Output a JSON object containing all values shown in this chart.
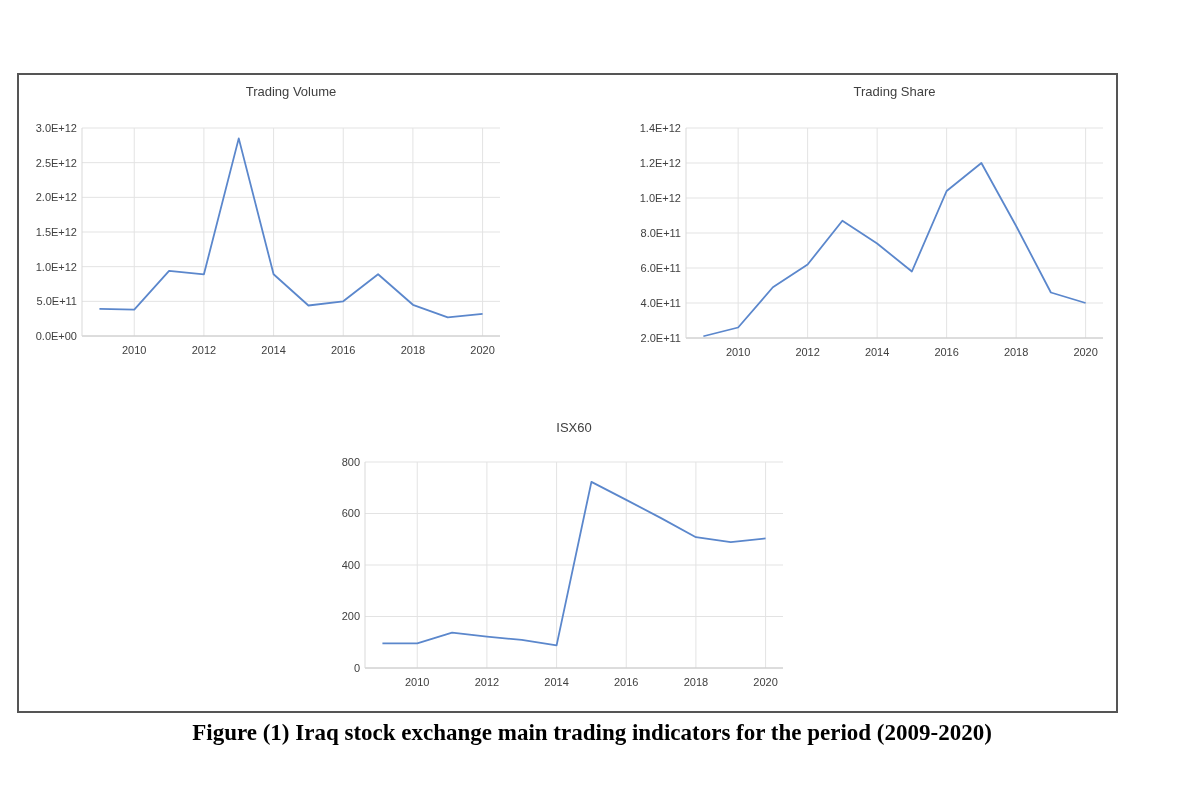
{
  "chart_data": [
    {
      "type": "line",
      "title": "Trading Volume",
      "x": [
        2009,
        2010,
        2011,
        2012,
        2013,
        2014,
        2015,
        2016,
        2017,
        2018,
        2019,
        2020
      ],
      "series": [
        {
          "color": "#5b87cc",
          "values": [
            390000000000.0,
            380000000000.0,
            940000000000.0,
            890000000000.0,
            2850000000000.0,
            890000000000.0,
            440000000000.0,
            500000000000.0,
            890000000000.0,
            450000000000.0,
            270000000000.0,
            320000000000.0
          ]
        }
      ],
      "xlim": [
        2008.5,
        2020.5
      ],
      "xticks": [
        2010,
        2012,
        2014,
        2016,
        2018,
        2020
      ],
      "ylim": [
        0,
        3000000000000.0
      ],
      "yticks": [
        {
          "value": 0,
          "label": "0.0E+00"
        },
        {
          "value": 500000000000.0,
          "label": "5.0E+11"
        },
        {
          "value": 1000000000000.0,
          "label": "1.0E+12"
        },
        {
          "value": 1500000000000.0,
          "label": "1.5E+12"
        },
        {
          "value": 2000000000000.0,
          "label": "2.0E+12"
        },
        {
          "value": 2500000000000.0,
          "label": "2.5E+12"
        },
        {
          "value": 3000000000000.0,
          "label": "3.0E+12"
        }
      ],
      "grid": true
    },
    {
      "type": "line",
      "title": "Trading Share",
      "x": [
        2009,
        2010,
        2011,
        2012,
        2013,
        2014,
        2015,
        2016,
        2017,
        2018,
        2019,
        2020
      ],
      "series": [
        {
          "color": "#5b87cc",
          "values": [
            210000000000.0,
            260000000000.0,
            490000000000.0,
            620000000000.0,
            870000000000.0,
            740000000000.0,
            580000000000.0,
            1040000000000.0,
            1200000000000.0,
            840000000000.0,
            460000000000.0,
            400000000000.0
          ]
        }
      ],
      "xlim": [
        2008.5,
        2020.5
      ],
      "xticks": [
        2010,
        2012,
        2014,
        2016,
        2018,
        2020
      ],
      "ylim": [
        200000000000.0,
        1400000000000.0
      ],
      "yticks": [
        {
          "value": 200000000000.0,
          "label": "2.0E+11"
        },
        {
          "value": 400000000000.0,
          "label": "4.0E+11"
        },
        {
          "value": 600000000000.0,
          "label": "6.0E+11"
        },
        {
          "value": 800000000000.0,
          "label": "8.0E+11"
        },
        {
          "value": 1000000000000.0,
          "label": "1.0E+12"
        },
        {
          "value": 1200000000000.0,
          "label": "1.2E+12"
        },
        {
          "value": 1400000000000.0,
          "label": "1.4E+12"
        }
      ],
      "grid": true
    },
    {
      "type": "line",
      "title": "ISX60",
      "x": [
        2009,
        2010,
        2011,
        2012,
        2013,
        2014,
        2015,
        2016,
        2017,
        2018,
        2019,
        2020
      ],
      "series": [
        {
          "color": "#5b87cc",
          "values": [
            96,
            96,
            137,
            122,
            109,
            88,
            723,
            653,
            582,
            508,
            489,
            503
          ]
        }
      ],
      "xlim": [
        2008.5,
        2020.5
      ],
      "xticks": [
        2010,
        2012,
        2014,
        2016,
        2018,
        2020
      ],
      "ylim": [
        0,
        800
      ],
      "yticks": [
        0,
        200,
        400,
        600,
        800
      ],
      "grid": true,
      "annotations": [
        "Figure (1) Iraq stock exchange main trading indicators for the period (2009-2020)"
      ]
    }
  ]
}
